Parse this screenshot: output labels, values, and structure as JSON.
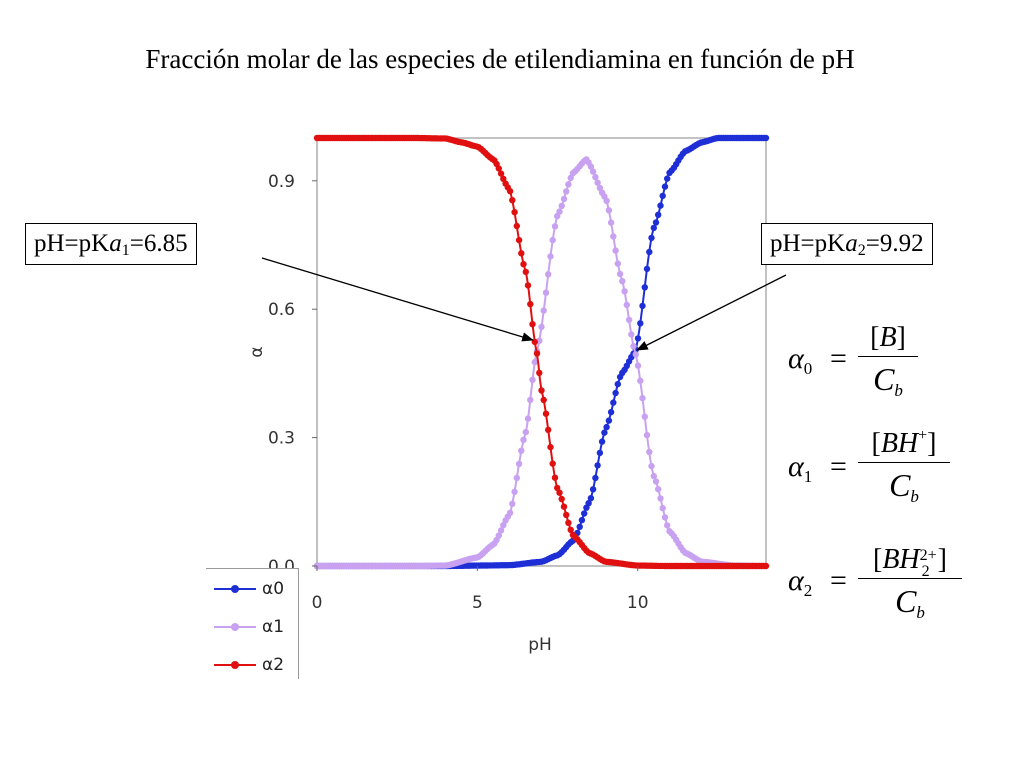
{
  "title": "Fracción molar de las especies de etilendiamina en función de pH",
  "callouts": {
    "pka1": {
      "prefix": "pH=pK",
      "var": "a",
      "sub": "1",
      "value": "=6.85"
    },
    "pka2": {
      "prefix": "pH=pK",
      "var": "a",
      "sub": "2",
      "value": "=9.92"
    }
  },
  "formulas": {
    "alpha0": {
      "alpha": "α",
      "sub": "0",
      "eq": "=",
      "num_open": "[",
      "num_species": "B",
      "num_charge": "",
      "num_sub": "",
      "num_close": "]",
      "den": "C",
      "den_sub": "b"
    },
    "alpha1": {
      "alpha": "α",
      "sub": "1",
      "eq": "=",
      "num_open": "[",
      "num_species": "BH",
      "num_charge": "+",
      "num_sub": "",
      "num_close": "]",
      "den": "C",
      "den_sub": "b"
    },
    "alpha2": {
      "alpha": "α",
      "sub": "2",
      "eq": "=",
      "num_open": "[",
      "num_species": "BH",
      "num_charge": "2+",
      "num_sub": "2",
      "num_close": "]",
      "den": "C",
      "den_sub": "b"
    }
  },
  "chart_data": {
    "type": "line",
    "title": "",
    "xlabel": "pH",
    "ylabel": "α",
    "xlim": [
      0,
      14
    ],
    "ylim": [
      0,
      1
    ],
    "xticks": [
      0,
      5,
      10
    ],
    "yticks": [
      0.0,
      0.3,
      0.6,
      0.9
    ],
    "ytick_labels": [
      "0.0",
      "0.3",
      "0.6",
      "0.9"
    ],
    "xtick_labels": [
      "0",
      "5",
      "10"
    ],
    "grid": false,
    "legend": "bottom-left",
    "pKa": [
      6.85,
      9.92
    ],
    "series": [
      {
        "name": "α0",
        "color": "#1f2fd6",
        "marker": "circle",
        "x": [
          0,
          4,
          5,
          6,
          7,
          7.5,
          8,
          8.5,
          9,
          9.5,
          9.92,
          10.5,
          11,
          11.5,
          12,
          12.5,
          13,
          14
        ],
        "values": [
          0,
          0,
          0.001,
          0.002,
          0.01,
          0.025,
          0.06,
          0.15,
          0.32,
          0.45,
          0.5,
          0.79,
          0.92,
          0.97,
          0.99,
          1.0,
          1.0,
          1.0
        ]
      },
      {
        "name": "α1",
        "color": "#c8a2f0",
        "marker": "circle",
        "x": [
          0,
          3,
          4,
          5,
          5.5,
          6,
          6.5,
          6.85,
          7.5,
          8,
          8.4,
          9,
          9.5,
          9.92,
          10.5,
          11,
          11.5,
          12,
          13,
          14
        ],
        "values": [
          0,
          0,
          0.001,
          0.02,
          0.05,
          0.12,
          0.31,
          0.5,
          0.82,
          0.92,
          0.95,
          0.86,
          0.67,
          0.5,
          0.21,
          0.08,
          0.03,
          0.01,
          0.001,
          0
        ]
      },
      {
        "name": "α2",
        "color": "#e01010",
        "marker": "circle",
        "x": [
          0,
          2,
          3,
          4,
          4.5,
          5,
          5.5,
          6,
          6.5,
          6.85,
          7,
          7.5,
          8,
          8.5,
          9,
          10,
          11,
          12,
          14
        ],
        "values": [
          1.0,
          1.0,
          1.0,
          0.999,
          0.99,
          0.98,
          0.95,
          0.88,
          0.69,
          0.5,
          0.41,
          0.18,
          0.07,
          0.03,
          0.01,
          0.001,
          0,
          0,
          0
        ]
      }
    ]
  }
}
